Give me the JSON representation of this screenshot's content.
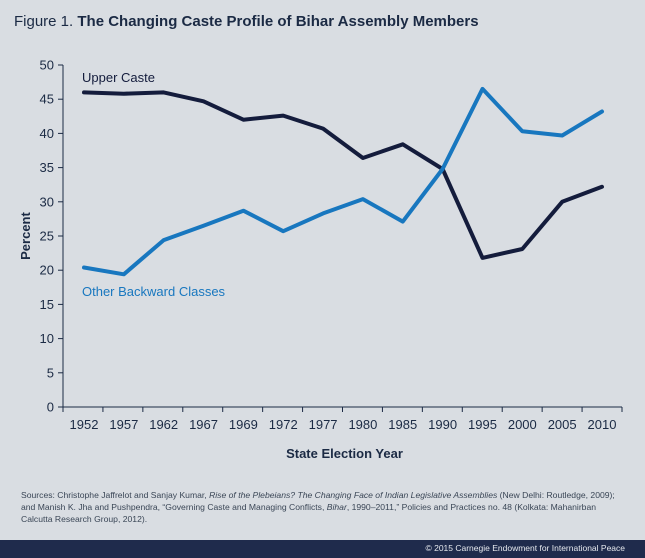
{
  "figure": {
    "label": "Figure 1.",
    "title": "The Changing Caste Profile of Bihar Assembly Members"
  },
  "chart_data": {
    "type": "line",
    "title": "The Changing Caste Profile of Bihar Assembly Members",
    "xlabel": "State Election Year",
    "ylabel": "Percent",
    "ylim": [
      0,
      50
    ],
    "yticks": [
      0,
      5,
      10,
      15,
      20,
      25,
      30,
      35,
      40,
      45,
      50
    ],
    "grid": false,
    "categories": [
      "1952",
      "1957",
      "1962",
      "1967",
      "1969",
      "1972",
      "1977",
      "1980",
      "1985",
      "1990",
      "1995",
      "2000",
      "2005",
      "2010"
    ],
    "series": [
      {
        "name": "Upper Caste",
        "color": "#141c3c",
        "values": [
          46.0,
          45.8,
          46.0,
          44.7,
          42.0,
          42.6,
          40.7,
          36.4,
          38.4,
          34.8,
          21.8,
          23.1,
          30.0,
          32.2
        ]
      },
      {
        "name": "Other Backward Classes",
        "color": "#1877bf",
        "values": [
          20.4,
          19.4,
          24.4,
          26.5,
          28.7,
          25.7,
          28.3,
          30.4,
          27.1,
          34.8,
          46.5,
          40.3,
          39.7,
          43.2
        ]
      }
    ]
  },
  "sources": {
    "lead": "Sources: Christophe Jaffrelot and Sanjay Kumar, ",
    "book": "Rise of the Plebeians? The Changing Face of Indian Legislative Assemblies",
    "mid": " (New Delhi: Routledge, 2009); and Manish K. Jha and Pushpendra, “Governing Caste and Managing Conflicts, ",
    "place": "Bihar",
    "tail": ", 1990–2011,” Policies and Practices no. 48 (Kolkata: Mahanirban Calcutta Research Group, 2012)."
  },
  "footer": {
    "copyright": "© 2015 Carnegie Endowment for International Peace"
  }
}
